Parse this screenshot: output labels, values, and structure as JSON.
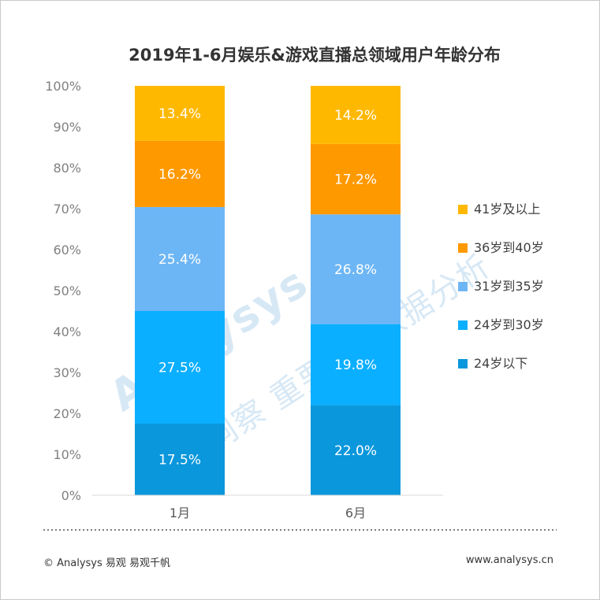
{
  "chart_data": {
    "type": "bar",
    "stacked": true,
    "title": "2019年1-6月娱乐&游戏直播总领域用户年龄分布",
    "categories": [
      "1月",
      "6月"
    ],
    "series": [
      {
        "name": "24岁以下",
        "values": [
          17.5,
          22.0
        ],
        "color": "#0a97dc"
      },
      {
        "name": "24岁到30岁",
        "values": [
          27.5,
          19.8
        ],
        "color": "#0bafff"
      },
      {
        "name": "31岁到35岁",
        "values": [
          25.4,
          26.8
        ],
        "color": "#6db6f5"
      },
      {
        "name": "36岁到40岁",
        "values": [
          16.2,
          17.2
        ],
        "color": "#ff9900"
      },
      {
        "name": "41岁及以上",
        "values": [
          13.4,
          14.2
        ],
        "color": "#ffb800"
      }
    ],
    "data_labels": [
      [
        "17.5%",
        "22.0%"
      ],
      [
        "27.5%",
        "19.8%"
      ],
      [
        "25.4%",
        "26.8%"
      ],
      [
        "16.2%",
        "17.2%"
      ],
      [
        "13.4%",
        "14.2%"
      ]
    ],
    "y_ticks": [
      "0%",
      "10%",
      "20%",
      "30%",
      "40%",
      "50%",
      "60%",
      "70%",
      "80%",
      "90%",
      "100%"
    ],
    "ylim": [
      0,
      100
    ],
    "legend_position": "right",
    "grid": false
  },
  "watermark": {
    "brand": "Analysys 易观",
    "tagline": "洞察 重要 的 数据分析"
  },
  "footer": {
    "left": "© Analysys 易观 易观千帆",
    "right": "www.analysys.cn"
  }
}
